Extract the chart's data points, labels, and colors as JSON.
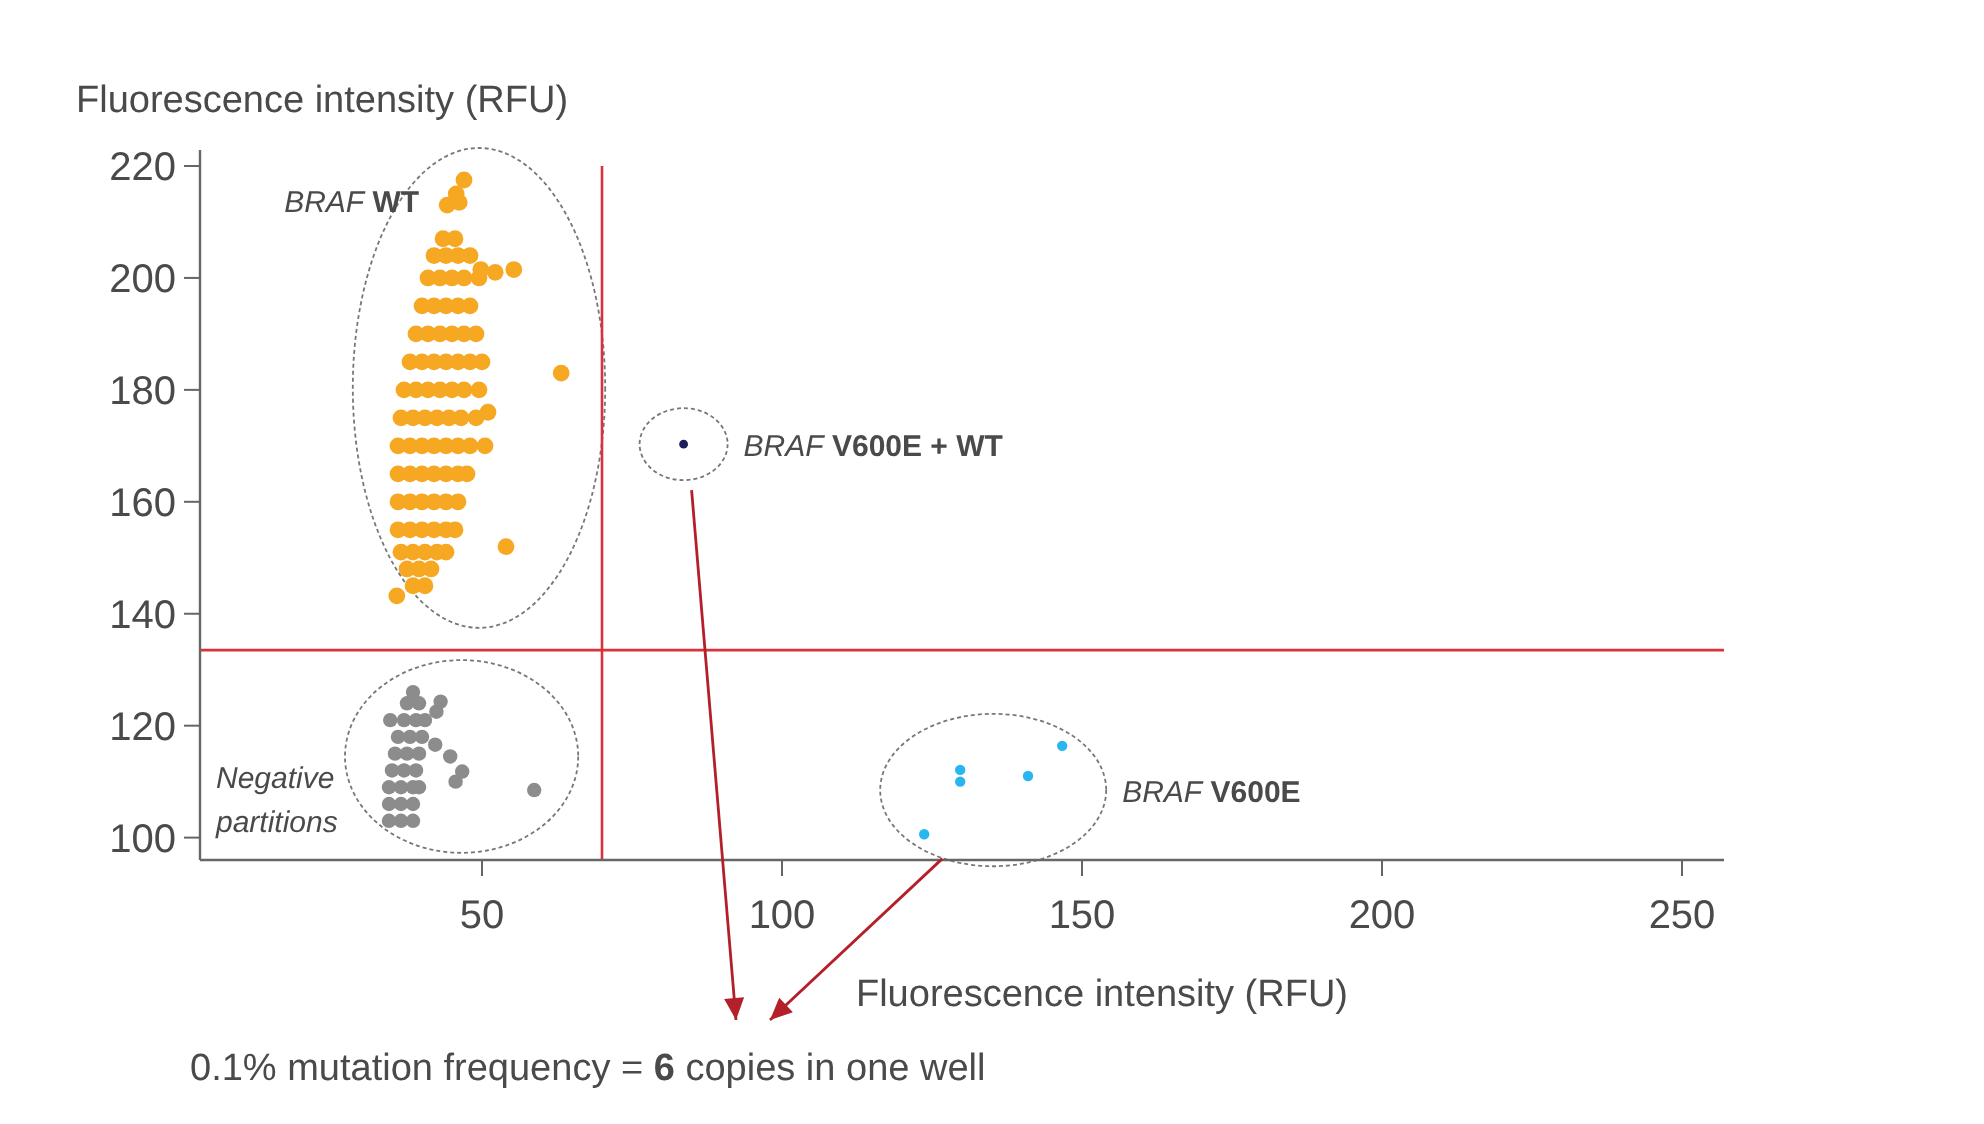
{
  "chart_data": {
    "type": "scatter",
    "xlabel": "Fluorescence intensity (RFU)",
    "ylabel": "Fluorescence intensity (RFU)",
    "xlim": [
      3,
      257
    ],
    "ylim": [
      96,
      220
    ],
    "xticks": [
      50,
      100,
      150,
      200,
      250
    ],
    "yticks": [
      100,
      120,
      140,
      160,
      180,
      200,
      220
    ],
    "grid": false,
    "marker": "circle",
    "ref_lines": [
      {
        "axis": "x",
        "value": 70,
        "color": "#d9323a"
      },
      {
        "axis": "y",
        "value": 133.5,
        "color": "#d9323a"
      }
    ],
    "annotations": [
      "0.1% mutation frequency = 6 copies in one well"
    ],
    "series": [
      {
        "name": "BRAF WT",
        "color": "#f7a823",
        "x": [
          38.5,
          40.5,
          37.5,
          39.5,
          41.5,
          36.5,
          38.5,
          40.5,
          42.5,
          44,
          36,
          38,
          40,
          42,
          44,
          45.5,
          36,
          38,
          40,
          42,
          44,
          46,
          36,
          38,
          40,
          42,
          44,
          46,
          47.5,
          36,
          38,
          40,
          42,
          44,
          46,
          48,
          36.5,
          38.5,
          40.5,
          42.5,
          44.5,
          46.5,
          49,
          37,
          39,
          41,
          43,
          45,
          47,
          49.5,
          38,
          40,
          42,
          44,
          46,
          48,
          50,
          39,
          41,
          43,
          45,
          47,
          49,
          40,
          42,
          44,
          46,
          48,
          41,
          43,
          45,
          47,
          49.5,
          42,
          44,
          46,
          48,
          43.5,
          45.5,
          47,
          45.7,
          44.2,
          46.2,
          49.8,
          52.2,
          55.3,
          63.2,
          54,
          35.8,
          51,
          50.5
        ],
        "values": [
          145,
          145,
          148,
          148,
          148,
          151,
          151,
          151,
          151,
          151,
          155,
          155,
          155,
          155,
          155,
          155,
          160,
          160,
          160,
          160,
          160,
          160,
          165,
          165,
          165,
          165,
          165,
          165,
          165,
          170,
          170,
          170,
          170,
          170,
          170,
          170,
          175,
          175,
          175,
          175,
          175,
          175,
          175,
          180,
          180,
          180,
          180,
          180,
          180,
          180,
          185,
          185,
          185,
          185,
          185,
          185,
          185,
          190,
          190,
          190,
          190,
          190,
          190,
          195,
          195,
          195,
          195,
          195,
          200,
          200,
          200,
          200,
          200,
          204,
          204,
          204,
          204,
          207,
          207,
          217.5,
          215,
          213,
          213.5,
          201.5,
          201,
          201.5,
          183,
          152,
          143.2,
          176,
          170
        ]
      },
      {
        "name": "BRAF V600E + WT",
        "color": "#1a1f5c",
        "x": [
          83.6
        ],
        "values": [
          170.3
        ]
      },
      {
        "name": "BRAF V600E",
        "color": "#29b6f0",
        "x": [
          123.7,
          129.7,
          129.7,
          141,
          146.7
        ],
        "values": [
          100.6,
          112.1,
          110,
          111,
          116.4
        ]
      },
      {
        "name": "Negative partitions",
        "color": "#8c8c8c",
        "x": [
          34.5,
          36.5,
          38.5,
          34.5,
          36.5,
          38.5,
          34.5,
          36.5,
          38.5,
          39.5,
          35,
          37,
          39,
          35.5,
          37.5,
          39.5,
          36,
          38,
          40,
          37,
          39,
          40.5,
          37.5,
          39.5,
          38.5,
          43.1,
          42.4,
          34.7,
          42.2,
          44.7,
          46.7,
          45.6,
          58.7
        ],
        "values": [
          103,
          103,
          103,
          106,
          106,
          106,
          109,
          109,
          109,
          109,
          112,
          112,
          112,
          115,
          115,
          115,
          118,
          118,
          118,
          121,
          121,
          121,
          124,
          124,
          126,
          124.3,
          122.5,
          121,
          116.6,
          114.5,
          111.8,
          110,
          108.5
        ]
      }
    ]
  }
}
